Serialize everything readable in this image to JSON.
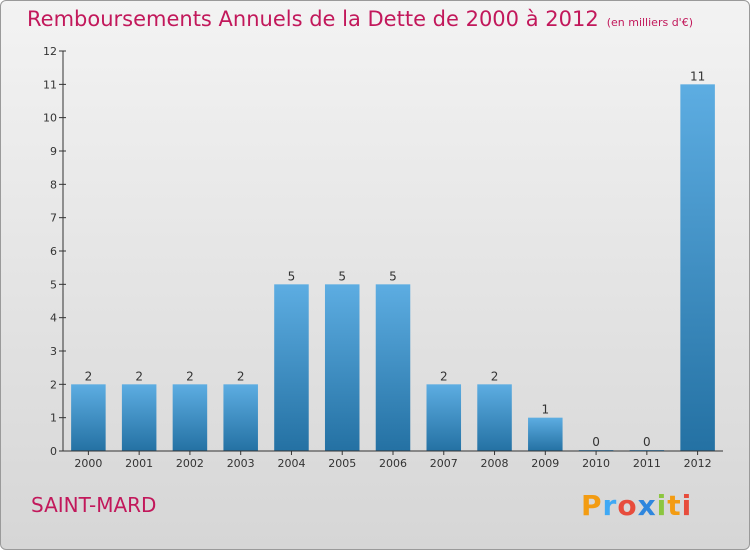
{
  "title": "Remboursements Annuels de la Dette de 2000 à 2012",
  "subtitle": "(en milliers d'€)",
  "commune": "SAINT-MARD",
  "logo": {
    "letters": [
      "P",
      "r",
      "o",
      "x",
      "i",
      "t",
      "i"
    ],
    "colors": [
      "#f39c12",
      "#3fa9f5",
      "#e74c3c",
      "#2e86de",
      "#8cc63f",
      "#f39c12",
      "#e74c3c"
    ]
  },
  "colors": {
    "bar_light": "#5dade2",
    "bar_dark": "#2471a3",
    "title": "#c2185b"
  },
  "chart_data": {
    "type": "bar",
    "categories": [
      "2000",
      "2001",
      "2002",
      "2003",
      "2004",
      "2005",
      "2006",
      "2007",
      "2008",
      "2009",
      "2010",
      "2011",
      "2012"
    ],
    "values": [
      2,
      2,
      2,
      2,
      5,
      5,
      5,
      2,
      2,
      1,
      0,
      0,
      11
    ],
    "ylim": [
      0,
      12
    ],
    "yticks": [
      0,
      1,
      2,
      3,
      4,
      5,
      6,
      7,
      8,
      9,
      10,
      11,
      12
    ],
    "grid": false
  }
}
